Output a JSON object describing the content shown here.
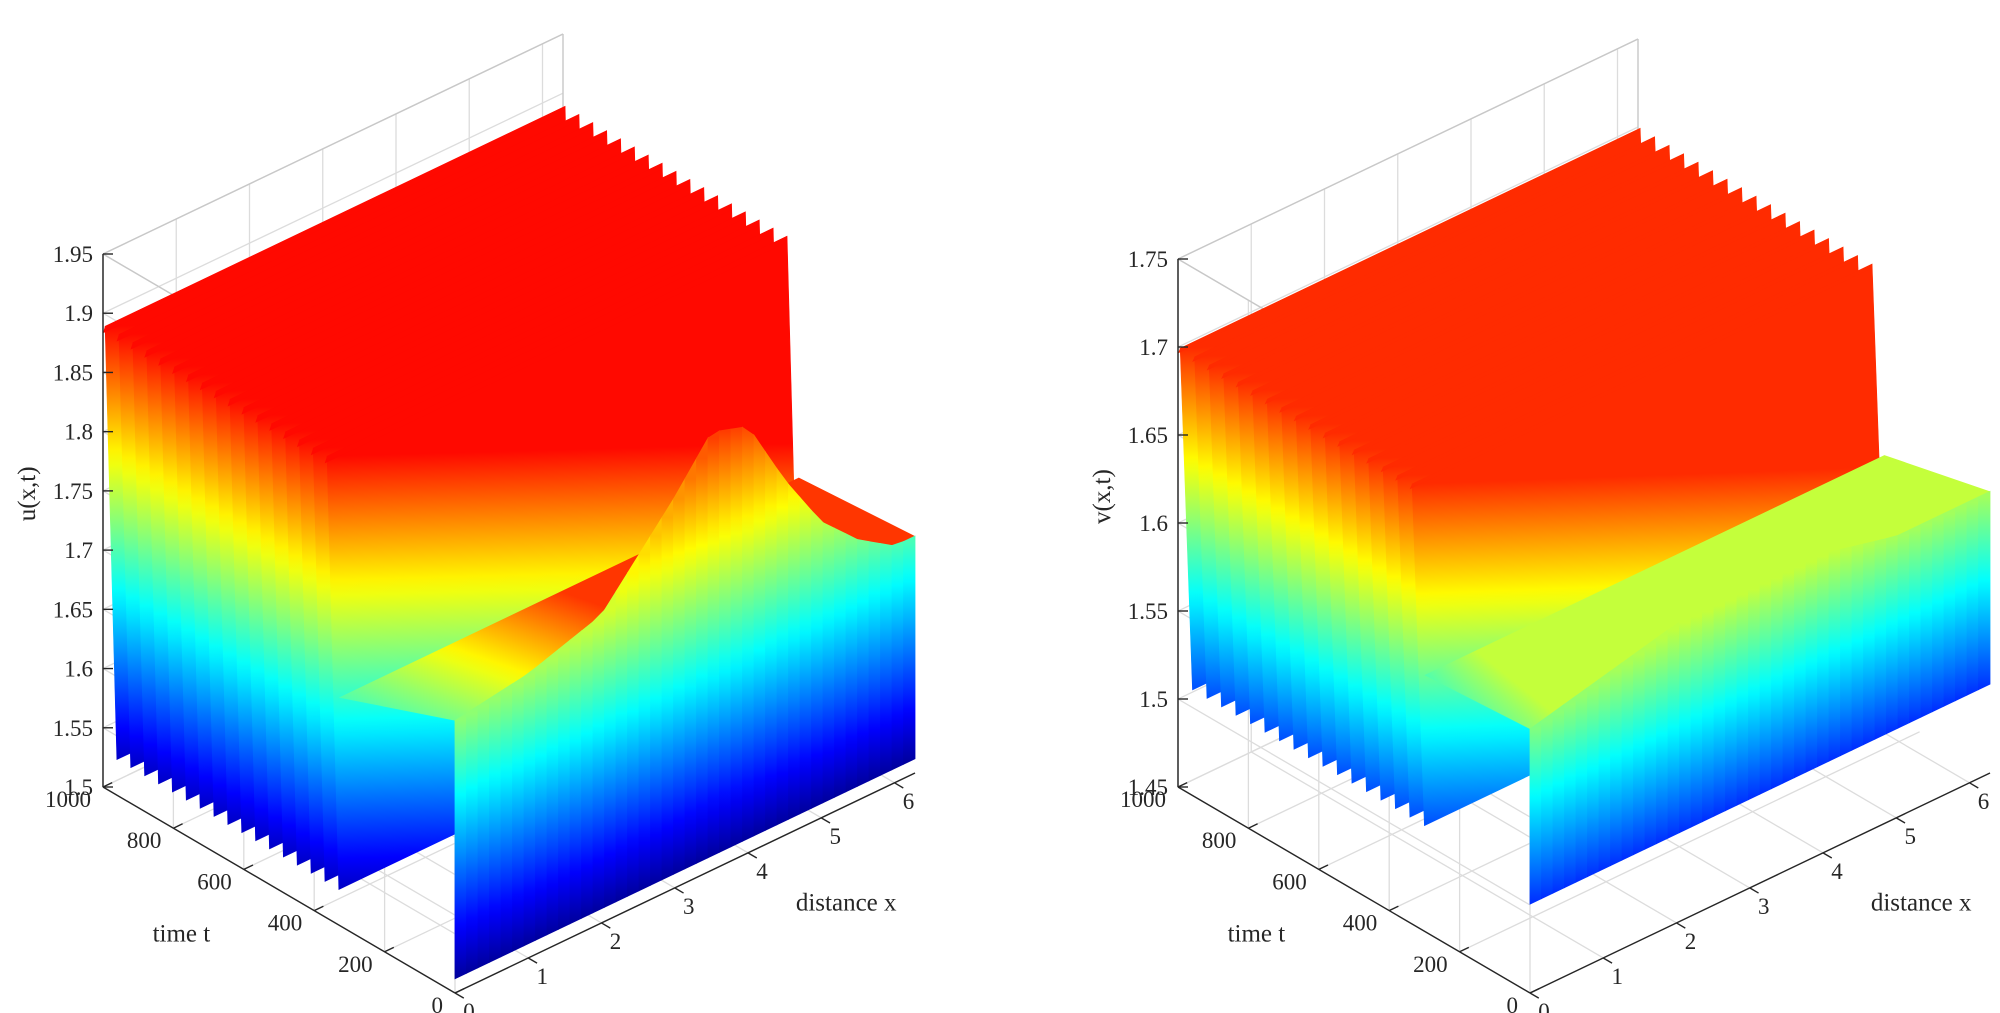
{
  "chart_data": [
    {
      "type": "surface",
      "panel": "left",
      "zlabel": "u(x,t)",
      "xlabel": "distance x",
      "ylabel": "time t",
      "xlim": [
        0,
        6.28
      ],
      "ylim": [
        0,
        1000
      ],
      "zlim": [
        1.5,
        1.95
      ],
      "xticks": [
        "0",
        "1",
        "2",
        "3",
        "4",
        "5",
        "6"
      ],
      "yticks": [
        "0",
        "200",
        "400",
        "600",
        "800",
        "1000"
      ],
      "zticks": [
        "1.5",
        "1.55",
        "1.6",
        "1.65",
        "1.7",
        "1.75",
        "1.8",
        "1.85",
        "1.9",
        "1.95"
      ],
      "colormap": "jet",
      "grid": true,
      "oscillation": {
        "min": 1.53,
        "max": 1.89,
        "ridges": 17,
        "t_start": 330
      },
      "transient": {
        "x": [
          0,
          1,
          2,
          3,
          3.5,
          4,
          4.5,
          5,
          5.5,
          6,
          6.28
        ],
        "u_at_t0": [
          1.73,
          1.74,
          1.76,
          1.83,
          1.87,
          1.86,
          1.8,
          1.75,
          1.72,
          1.7,
          1.7
        ]
      }
    },
    {
      "type": "surface",
      "panel": "right",
      "zlabel": "v(x,t)",
      "xlabel": "distance x",
      "ylabel": "time t",
      "xlim": [
        0,
        6.28
      ],
      "ylim": [
        0,
        1000
      ],
      "zlim": [
        1.45,
        1.75
      ],
      "xticks": [
        "0",
        "1",
        "2",
        "3",
        "4",
        "5",
        "6"
      ],
      "yticks": [
        "0",
        "200",
        "400",
        "600",
        "800",
        "1000"
      ],
      "zticks": [
        "1.45",
        "1.5",
        "1.55",
        "1.6",
        "1.65",
        "1.7",
        "1.75"
      ],
      "colormap": "jet",
      "grid": true,
      "oscillation": {
        "min": 1.51,
        "max": 1.7,
        "ridges": 17,
        "t_start": 300
      },
      "transient": {
        "x": [
          0,
          1,
          2,
          3,
          4,
          5,
          6,
          6.28
        ],
        "v_at_t0": [
          1.6,
          1.61,
          1.62,
          1.62,
          1.62,
          1.61,
          1.61,
          1.61
        ]
      }
    }
  ]
}
